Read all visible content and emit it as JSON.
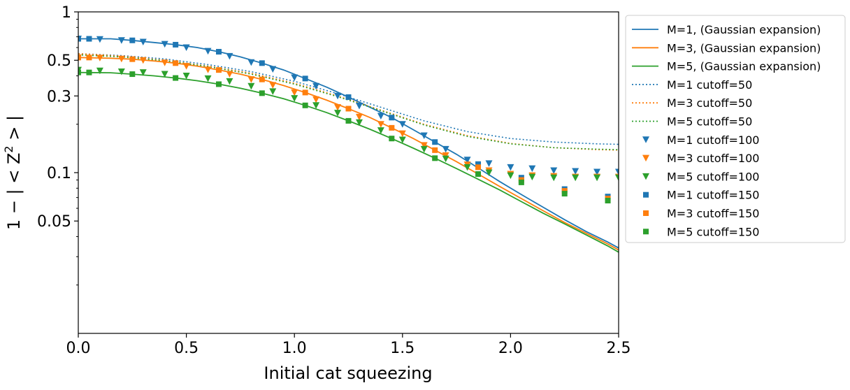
{
  "chart_data": {
    "type": "line",
    "xlabel": "Initial cat squeezing",
    "ylabel_parts": [
      "1 − | < Z",
      "2",
      " > |"
    ],
    "yscale": "log",
    "xlim": [
      0,
      2.5
    ],
    "ylim": [
      0.01,
      1
    ],
    "xticks": [
      0,
      0.5,
      1,
      1.5,
      2,
      2.5
    ],
    "xtick_labels": [
      "0.0",
      "0.5",
      "1.0",
      "1.5",
      "2.0",
      "2.5"
    ],
    "yticks": [
      1,
      0.5,
      0.3,
      0.1,
      0.05
    ],
    "ytick_labels": [
      "1",
      "0.5",
      "0.3",
      "0.1",
      "0.05"
    ],
    "yminor_ticks": [
      0.9,
      0.8,
      0.7,
      0.6,
      0.4,
      0.2,
      0.09,
      0.08,
      0.07,
      0.06,
      0.04,
      0.03,
      0.02
    ],
    "grid": false,
    "legend_position": "outside-right",
    "colors": {
      "M1": "#1f77b4",
      "M3": "#ff7f0e",
      "M5": "#2ca02c"
    },
    "series": [
      {
        "name": "M=1, (Gaussian expansion)",
        "color": "#1f77b4",
        "style": "solid",
        "x": [
          0,
          0.15,
          0.25,
          0.35,
          0.45,
          0.55,
          0.65,
          0.75,
          0.85,
          0.95,
          1.05,
          1.15,
          1.25,
          1.35,
          1.45,
          1.55,
          1.65,
          1.75,
          1.85,
          1.95,
          2.05,
          2.15,
          2.25,
          2.35,
          2.45,
          2.5
        ],
        "y": [
          0.68,
          0.68,
          0.665,
          0.645,
          0.625,
          0.6,
          0.565,
          0.525,
          0.48,
          0.435,
          0.385,
          0.34,
          0.295,
          0.255,
          0.22,
          0.185,
          0.155,
          0.13,
          0.107,
          0.088,
          0.073,
          0.061,
          0.051,
          0.043,
          0.037,
          0.034
        ]
      },
      {
        "name": "M=3, (Gaussian expansion)",
        "color": "#ff7f0e",
        "style": "solid",
        "x": [
          0,
          0.15,
          0.25,
          0.35,
          0.45,
          0.55,
          0.65,
          0.75,
          0.85,
          0.95,
          1.05,
          1.15,
          1.25,
          1.35,
          1.45,
          1.55,
          1.65,
          1.75,
          1.85,
          1.95,
          2.05,
          2.15,
          2.25,
          2.35,
          2.45,
          2.5
        ],
        "y": [
          0.52,
          0.515,
          0.508,
          0.495,
          0.48,
          0.46,
          0.435,
          0.41,
          0.38,
          0.348,
          0.315,
          0.282,
          0.25,
          0.22,
          0.19,
          0.163,
          0.138,
          0.117,
          0.098,
          0.082,
          0.069,
          0.058,
          0.049,
          0.042,
          0.036,
          0.033
        ]
      },
      {
        "name": "M=5, (Gaussian expansion)",
        "color": "#2ca02c",
        "style": "solid",
        "x": [
          0,
          0.15,
          0.25,
          0.35,
          0.45,
          0.55,
          0.65,
          0.75,
          0.85,
          0.95,
          1.05,
          1.15,
          1.25,
          1.35,
          1.45,
          1.55,
          1.65,
          1.75,
          1.85,
          1.95,
          2.05,
          2.15,
          2.25,
          2.35,
          2.45,
          2.5
        ],
        "y": [
          0.42,
          0.418,
          0.41,
          0.4,
          0.388,
          0.373,
          0.355,
          0.335,
          0.312,
          0.288,
          0.262,
          0.236,
          0.21,
          0.186,
          0.163,
          0.142,
          0.123,
          0.106,
          0.091,
          0.078,
          0.066,
          0.056,
          0.048,
          0.041,
          0.035,
          0.032
        ]
      },
      {
        "name": "M=1 cutoff=50",
        "color": "#1f77b4",
        "style": "dotted",
        "x": [
          0,
          0.2,
          0.4,
          0.6,
          0.8,
          1.0,
          1.2,
          1.4,
          1.6,
          1.8,
          2.0,
          2.2,
          2.4,
          2.5
        ],
        "y": [
          0.55,
          0.535,
          0.51,
          0.47,
          0.425,
          0.37,
          0.31,
          0.255,
          0.21,
          0.18,
          0.163,
          0.155,
          0.151,
          0.15
        ]
      },
      {
        "name": "M=3 cutoff=50",
        "color": "#ff7f0e",
        "style": "dotted",
        "x": [
          0,
          0.2,
          0.4,
          0.6,
          0.8,
          1.0,
          1.2,
          1.4,
          1.6,
          1.8,
          2.0,
          2.2,
          2.4,
          2.5
        ],
        "y": [
          0.55,
          0.53,
          0.5,
          0.46,
          0.415,
          0.36,
          0.3,
          0.245,
          0.2,
          0.17,
          0.152,
          0.143,
          0.139,
          0.138
        ]
      },
      {
        "name": "M=5 cutoff=50",
        "color": "#2ca02c",
        "style": "dotted",
        "x": [
          0,
          0.2,
          0.4,
          0.6,
          0.8,
          1.0,
          1.2,
          1.4,
          1.6,
          1.8,
          2.0,
          2.2,
          2.4,
          2.5
        ],
        "y": [
          0.54,
          0.525,
          0.497,
          0.457,
          0.41,
          0.355,
          0.297,
          0.243,
          0.198,
          0.168,
          0.151,
          0.143,
          0.14,
          0.139
        ]
      },
      {
        "name": "M=1 cutoff=100",
        "color": "#1f77b4",
        "marker": "triangle-down",
        "x": [
          0,
          0.1,
          0.2,
          0.3,
          0.4,
          0.5,
          0.6,
          0.7,
          0.8,
          0.9,
          1.0,
          1.1,
          1.2,
          1.3,
          1.4,
          1.5,
          1.6,
          1.7,
          1.8,
          1.9,
          2.0,
          2.1,
          2.2,
          2.3,
          2.4,
          2.5
        ],
        "y": [
          0.68,
          0.675,
          0.665,
          0.65,
          0.63,
          0.6,
          0.57,
          0.53,
          0.485,
          0.44,
          0.39,
          0.345,
          0.3,
          0.26,
          0.225,
          0.2,
          0.17,
          0.14,
          0.12,
          0.114,
          0.108,
          0.106,
          0.103,
          0.102,
          0.101,
          0.101
        ]
      },
      {
        "name": "M=3 cutoff=100",
        "color": "#ff7f0e",
        "marker": "triangle-down",
        "x": [
          0,
          0.1,
          0.2,
          0.3,
          0.4,
          0.5,
          0.6,
          0.7,
          0.8,
          0.9,
          1.0,
          1.1,
          1.2,
          1.3,
          1.4,
          1.5,
          1.6,
          1.7,
          1.8,
          1.9,
          2.0,
          2.1,
          2.2,
          2.3,
          2.4,
          2.5
        ],
        "y": [
          0.52,
          0.517,
          0.51,
          0.5,
          0.483,
          0.46,
          0.437,
          0.41,
          0.38,
          0.35,
          0.315,
          0.285,
          0.255,
          0.222,
          0.2,
          0.175,
          0.148,
          0.128,
          0.112,
          0.103,
          0.098,
          0.096,
          0.095,
          0.094,
          0.094,
          0.094
        ]
      },
      {
        "name": "M=5 cutoff=100",
        "color": "#2ca02c",
        "marker": "triangle-down",
        "x": [
          0,
          0.1,
          0.2,
          0.3,
          0.4,
          0.5,
          0.6,
          0.7,
          0.8,
          0.9,
          1.0,
          1.1,
          1.2,
          1.3,
          1.4,
          1.5,
          1.6,
          1.7,
          1.8,
          1.9,
          2.0,
          2.1,
          2.2,
          2.3,
          2.4,
          2.5
        ],
        "y": [
          0.435,
          0.43,
          0.425,
          0.42,
          0.41,
          0.4,
          0.385,
          0.37,
          0.345,
          0.32,
          0.29,
          0.262,
          0.235,
          0.205,
          0.183,
          0.16,
          0.14,
          0.122,
          0.108,
          0.1,
          0.096,
          0.094,
          0.093,
          0.093,
          0.093,
          0.093
        ]
      },
      {
        "name": "M=1 cutoff=150",
        "color": "#1f77b4",
        "marker": "square",
        "x": [
          0,
          0.05,
          0.25,
          0.45,
          0.65,
          0.85,
          1.05,
          1.25,
          1.45,
          1.65,
          1.85,
          2.05,
          2.25,
          2.45
        ],
        "y": [
          0.68,
          0.68,
          0.665,
          0.625,
          0.565,
          0.48,
          0.385,
          0.295,
          0.22,
          0.155,
          0.113,
          0.093,
          0.079,
          0.071
        ]
      },
      {
        "name": "M=3 cutoff=150",
        "color": "#ff7f0e",
        "marker": "square",
        "x": [
          0,
          0.05,
          0.25,
          0.45,
          0.65,
          0.85,
          1.05,
          1.25,
          1.45,
          1.65,
          1.85,
          2.05,
          2.25,
          2.45
        ],
        "y": [
          0.52,
          0.52,
          0.508,
          0.48,
          0.435,
          0.38,
          0.315,
          0.25,
          0.19,
          0.138,
          0.108,
          0.09,
          0.077,
          0.069
        ]
      },
      {
        "name": "M=5 cutoff=150",
        "color": "#2ca02c",
        "marker": "square",
        "x": [
          0,
          0.05,
          0.25,
          0.45,
          0.65,
          0.85,
          1.05,
          1.25,
          1.45,
          1.65,
          1.85,
          2.05,
          2.25,
          2.45
        ],
        "y": [
          0.42,
          0.42,
          0.41,
          0.388,
          0.355,
          0.312,
          0.262,
          0.21,
          0.163,
          0.123,
          0.098,
          0.087,
          0.074,
          0.067
        ]
      }
    ]
  }
}
